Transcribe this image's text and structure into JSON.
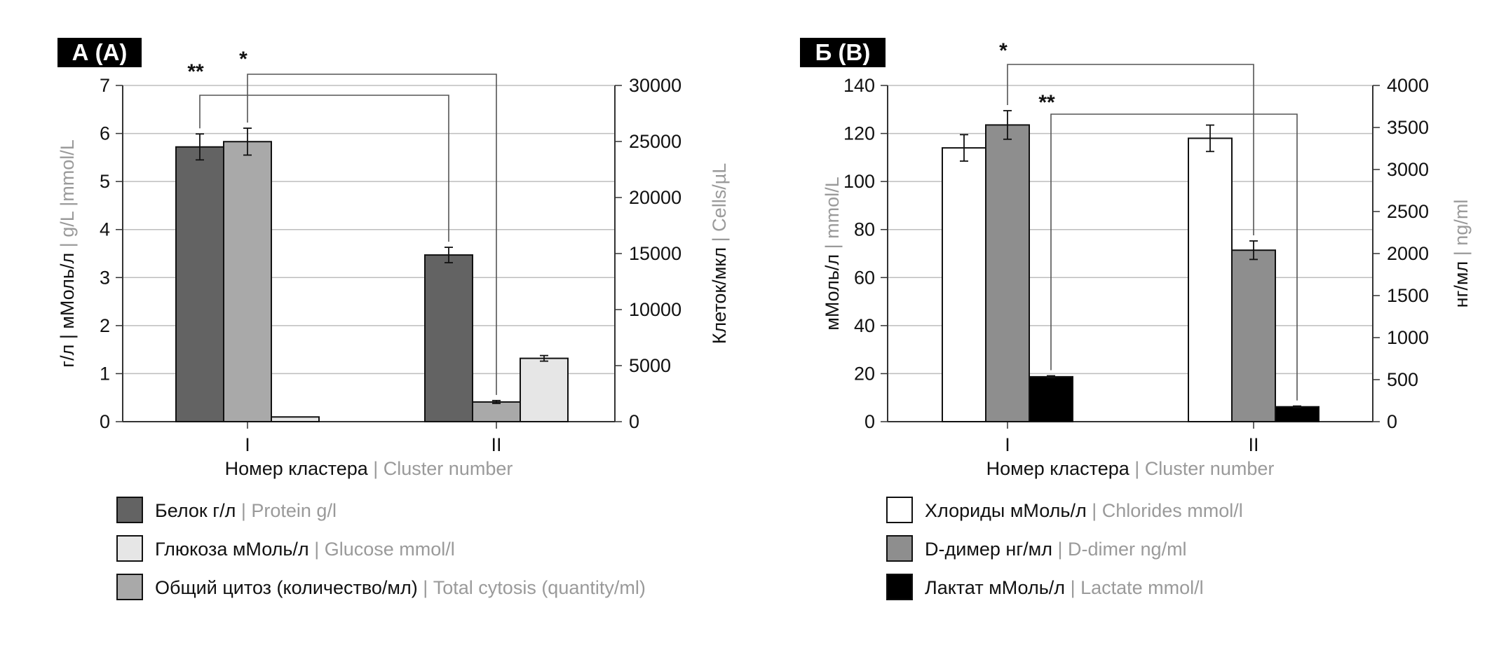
{
  "chart_data": [
    {
      "type": "bar",
      "badge": "А (A)",
      "categories": [
        "I",
        "II"
      ],
      "xlabel": {
        "ru": "Номер кластера",
        "en": "Cluster number"
      },
      "ylabel_left": {
        "ru": "г/л | мМоль/л",
        "en": "g/L |mmol/L"
      },
      "ylabel_right": {
        "ru": "Клеток/мкл",
        "en": "Cells/µL"
      },
      "ylim_left": [
        0,
        7
      ],
      "yticks_left": [
        "0",
        "1",
        "2",
        "3",
        "4",
        "5",
        "6",
        "7"
      ],
      "ylim_right": [
        0,
        30000
      ],
      "yticks_right": [
        "0",
        "5000",
        "10000",
        "15000",
        "20000",
        "25000",
        "30000"
      ],
      "grid": true,
      "series": [
        {
          "name_ru": "Белок г/л",
          "name_en": "Protein g/l",
          "axis": "left",
          "color": "#636363",
          "values": [
            5.72,
            3.47
          ],
          "errors": [
            0.27,
            0.16
          ]
        },
        {
          "name_ru": "Общий цитоз (количество/мл)",
          "name_en": "Total cytosis (quantity/ml)",
          "axis": "left",
          "color": "#a9a9a9",
          "values": [
            5.83,
            0.41
          ],
          "errors": [
            0.28,
            0.03
          ]
        },
        {
          "name_ru": "Глюкоза мМоль/л",
          "name_en": "Glucose mmol/l",
          "axis": "right",
          "color": "#e6e6e6",
          "values": [
            420,
            5650
          ],
          "errors": [
            0,
            250
          ]
        }
      ],
      "legend_order": [
        0,
        2,
        1
      ],
      "significance": [
        {
          "label": "**",
          "from": [
            0,
            0
          ],
          "to": [
            1,
            0
          ]
        },
        {
          "label": "*",
          "from": [
            0,
            1
          ],
          "to": [
            1,
            1
          ]
        }
      ]
    },
    {
      "type": "bar",
      "badge": "Б (B)",
      "categories": [
        "I",
        "II"
      ],
      "xlabel": {
        "ru": "Номер кластера",
        "en": "Cluster number"
      },
      "ylabel_left": {
        "ru": "мМоль/л",
        "en": "mmol/L"
      },
      "ylabel_right": {
        "ru": "нг/мл",
        "en": "ng/ml"
      },
      "ylim_left": [
        0,
        140
      ],
      "yticks_left": [
        "0",
        "20",
        "40",
        "60",
        "80",
        "100",
        "120",
        "140"
      ],
      "ylim_right": [
        0,
        4000
      ],
      "yticks_right": [
        "0",
        "500",
        "1000",
        "1500",
        "2000",
        "2500",
        "3000",
        "3500",
        "4000"
      ],
      "grid": true,
      "series": [
        {
          "name_ru": "Хлориды мМоль/л",
          "name_en": "Chlorides mmol/l",
          "axis": "left",
          "color": "#ffffff",
          "values": [
            114,
            118
          ],
          "errors": [
            5.5,
            5.5
          ]
        },
        {
          "name_ru": "D-димер нг/мл",
          "name_en": "D-dimer ng/ml",
          "axis": "right",
          "color": "#8e8e8e",
          "values": [
            3530,
            2040
          ],
          "errors": [
            170,
            110
          ]
        },
        {
          "name_ru": "Лактат мМоль/л",
          "name_en": "Lactate mmol/l",
          "axis": "left",
          "color": "#000000",
          "values": [
            18.7,
            6.2
          ],
          "errors": [
            0.4,
            0.3
          ]
        }
      ],
      "legend_order": [
        0,
        1,
        2
      ],
      "significance": [
        {
          "label": "*",
          "from": [
            0,
            1
          ],
          "to": [
            1,
            1
          ]
        },
        {
          "label": "**",
          "from": [
            0,
            2
          ],
          "to": [
            1,
            2
          ]
        }
      ]
    }
  ]
}
